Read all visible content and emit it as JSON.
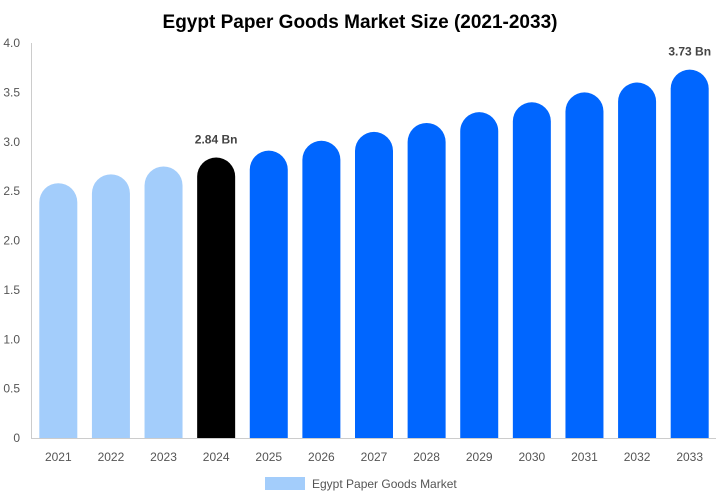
{
  "chart_data": {
    "type": "bar",
    "title": "Egypt Paper Goods Market Size (2021-2033)",
    "xlabel": "",
    "ylabel": "",
    "ylim": [
      0,
      4.0
    ],
    "yticks": [
      "0",
      "0.5",
      "1.0",
      "1.5",
      "2.0",
      "2.5",
      "3.0",
      "3.5",
      "4.0"
    ],
    "grid": false,
    "legend_position": "bottom-center",
    "categories": [
      "2021",
      "2022",
      "2023",
      "2024",
      "2025",
      "2026",
      "2027",
      "2028",
      "2029",
      "2030",
      "2031",
      "2032",
      "2033"
    ],
    "series": [
      {
        "name": "Egypt Paper Goods Market",
        "values": [
          2.58,
          2.67,
          2.75,
          2.84,
          2.91,
          3.01,
          3.1,
          3.19,
          3.3,
          3.4,
          3.5,
          3.6,
          3.73
        ]
      }
    ],
    "bar_colors": [
      "#a3cdfb",
      "#a3cdfb",
      "#a3cdfb",
      "#000000",
      "#0066ff",
      "#0066ff",
      "#0066ff",
      "#0066ff",
      "#0066ff",
      "#0066ff",
      "#0066ff",
      "#0066ff",
      "#0066ff"
    ],
    "legend_color": "#a3cdfb",
    "annotations": [
      {
        "category": "2024",
        "text": "2.84 Bn"
      },
      {
        "category": "2033",
        "text": "3.73 Bn"
      }
    ]
  }
}
